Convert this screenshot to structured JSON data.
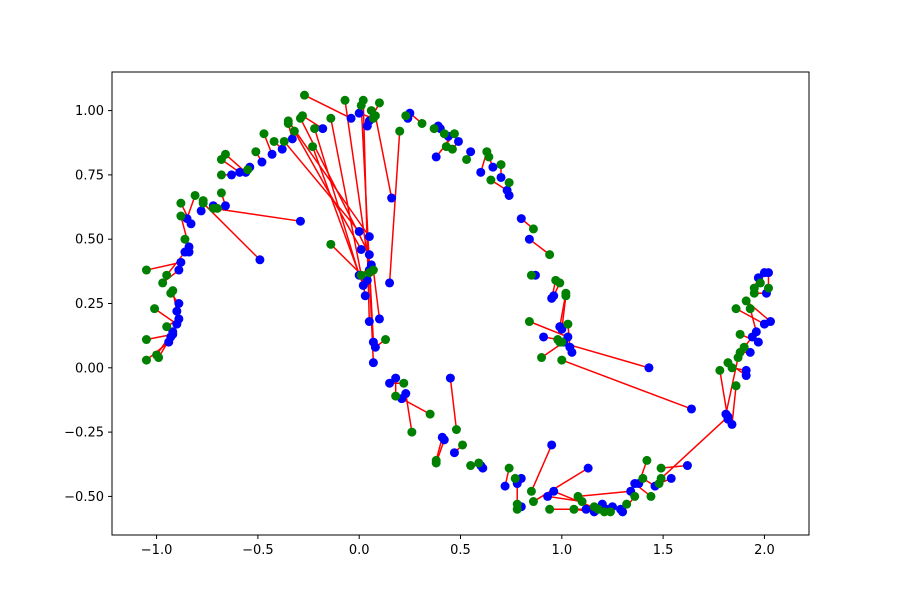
{
  "chart_data": {
    "type": "scatter",
    "title": "",
    "xlabel": "",
    "ylabel": "",
    "xlim": [
      -1.22,
      2.22
    ],
    "ylim": [
      -0.65,
      1.15
    ],
    "grid": false,
    "legend": "none",
    "xticks": [
      -1.0,
      -0.5,
      0.0,
      0.5,
      1.0,
      1.5,
      2.0
    ],
    "xtick_labels": [
      "−1.0",
      "−0.5",
      "0.0",
      "0.5",
      "1.0",
      "1.5",
      "2.0"
    ],
    "yticks": [
      -0.5,
      -0.25,
      0.0,
      0.25,
      0.5,
      0.75,
      1.0
    ],
    "ytick_labels": [
      "−0.50",
      "−0.25",
      "0.00",
      "0.25",
      "0.50",
      "0.75",
      "1.00"
    ],
    "colors": {
      "source": "#0000ff",
      "target": "#008000",
      "link": "#ff0000"
    },
    "pairs": [
      [
        -0.94,
        0.1,
        -1.05,
        0.03
      ],
      [
        -0.92,
        0.13,
        -1.05,
        0.11
      ],
      [
        -0.93,
        0.12,
        -0.99,
        0.04
      ],
      [
        -0.92,
        0.14,
        -1.0,
        0.05
      ],
      [
        -0.89,
        0.19,
        -0.95,
        0.16
      ],
      [
        -0.9,
        0.17,
        -1.01,
        0.23
      ],
      [
        -0.89,
        0.25,
        -0.93,
        0.29
      ],
      [
        -0.9,
        0.22,
        -0.92,
        0.3
      ],
      [
        -0.89,
        0.38,
        -0.97,
        0.33
      ],
      [
        -0.88,
        0.41,
        -1.05,
        0.38
      ],
      [
        -0.86,
        0.45,
        -0.95,
        0.36
      ],
      [
        -0.84,
        0.47,
        -0.88,
        0.59
      ],
      [
        -0.84,
        0.45,
        -0.86,
        0.5
      ],
      [
        -0.83,
        0.56,
        -0.88,
        0.64
      ],
      [
        -0.85,
        0.58,
        -0.81,
        0.67
      ],
      [
        -0.78,
        0.61,
        -0.77,
        0.65
      ],
      [
        -0.72,
        0.63,
        -0.7,
        0.62
      ],
      [
        -0.66,
        0.63,
        -0.68,
        0.68
      ],
      [
        -0.63,
        0.75,
        -0.68,
        0.75
      ],
      [
        -0.59,
        0.76,
        -0.68,
        0.81
      ],
      [
        -0.56,
        0.76,
        -0.66,
        0.83
      ],
      [
        -0.54,
        0.78,
        -0.55,
        0.77
      ],
      [
        -0.48,
        0.8,
        -0.51,
        0.84
      ],
      [
        -0.43,
        0.83,
        -0.47,
        0.91
      ],
      [
        -0.38,
        0.85,
        -0.42,
        0.88
      ],
      [
        -0.33,
        0.89,
        -0.35,
        0.95
      ],
      [
        -0.18,
        0.93,
        -0.28,
        0.98
      ],
      [
        -0.04,
        0.97,
        -0.27,
        1.06
      ],
      [
        -0.49,
        0.42,
        -0.77,
        0.64
      ],
      [
        -0.29,
        0.57,
        -0.72,
        0.62
      ],
      [
        0.0,
        0.53,
        -0.37,
        0.88
      ],
      [
        0.05,
        0.51,
        -0.35,
        0.96
      ],
      [
        0.05,
        0.44,
        -0.29,
        0.97
      ],
      [
        0.01,
        0.46,
        -0.32,
        0.92
      ],
      [
        0.0,
        0.36,
        -0.22,
        0.93
      ],
      [
        0.02,
        0.32,
        -0.23,
        0.86
      ],
      [
        0.03,
        0.28,
        -0.14,
        0.97
      ],
      [
        0.04,
        0.34,
        -0.14,
        0.48
      ],
      [
        0.05,
        0.38,
        -0.07,
        1.04
      ],
      [
        0.06,
        0.4,
        0.01,
        0.36
      ],
      [
        0.05,
        0.18,
        0.02,
        1.04
      ],
      [
        0.07,
        0.1,
        0.01,
        1.02
      ],
      [
        0.08,
        0.08,
        0.13,
        0.11
      ],
      [
        0.1,
        0.19,
        0.07,
        0.38
      ],
      [
        0.07,
        0.02,
        0.05,
        0.37
      ],
      [
        0.04,
        0.94,
        0.1,
        1.03
      ],
      [
        0.05,
        0.96,
        0.06,
        1.0
      ],
      [
        0.0,
        0.99,
        0.07,
        0.97
      ],
      [
        0.15,
        0.33,
        0.2,
        0.92
      ],
      [
        0.16,
        0.66,
        0.08,
        0.98
      ],
      [
        0.24,
        0.97,
        0.23,
        0.98
      ],
      [
        0.25,
        0.99,
        0.31,
        0.95
      ],
      [
        0.39,
        0.94,
        0.37,
        0.93
      ],
      [
        0.4,
        0.93,
        0.42,
        0.91
      ],
      [
        0.44,
        0.9,
        0.43,
        0.86
      ],
      [
        0.38,
        0.82,
        0.47,
        0.91
      ],
      [
        0.49,
        0.88,
        0.46,
        0.85
      ],
      [
        0.55,
        0.84,
        0.53,
        0.81
      ],
      [
        0.6,
        0.76,
        0.63,
        0.84
      ],
      [
        0.66,
        0.78,
        0.64,
        0.82
      ],
      [
        0.7,
        0.74,
        0.7,
        0.79
      ],
      [
        0.73,
        0.69,
        0.65,
        0.73
      ],
      [
        0.74,
        0.67,
        0.74,
        0.72
      ],
      [
        0.8,
        0.58,
        0.86,
        0.54
      ],
      [
        0.84,
        0.5,
        0.94,
        0.44
      ],
      [
        0.87,
        0.36,
        0.85,
        0.36
      ],
      [
        0.95,
        0.27,
        0.97,
        0.34
      ],
      [
        0.96,
        0.28,
        0.99,
        0.33
      ],
      [
        0.99,
        0.16,
        1.02,
        0.29
      ],
      [
        1.0,
        0.15,
        1.02,
        0.28
      ],
      [
        1.03,
        0.12,
        0.84,
        0.18
      ],
      [
        1.01,
        0.1,
        0.9,
        0.04
      ],
      [
        1.04,
        0.08,
        1.03,
        0.17
      ],
      [
        1.05,
        0.06,
        1.0,
        0.1
      ],
      [
        0.91,
        0.12,
        0.98,
        0.11
      ],
      [
        1.43,
        0.0,
        0.99,
        0.1
      ],
      [
        1.64,
        -0.16,
        1.0,
        0.03
      ],
      [
        0.15,
        -0.06,
        0.22,
        -0.06
      ],
      [
        0.18,
        -0.04,
        0.18,
        -0.11
      ],
      [
        0.23,
        -0.1,
        0.26,
        -0.25
      ],
      [
        0.21,
        -0.12,
        0.35,
        -0.18
      ],
      [
        0.41,
        -0.27,
        0.38,
        -0.36
      ],
      [
        0.42,
        -0.28,
        0.38,
        -0.37
      ],
      [
        0.45,
        -0.04,
        0.48,
        -0.24
      ],
      [
        0.47,
        -0.33,
        0.51,
        -0.3
      ],
      [
        0.6,
        -0.38,
        0.55,
        -0.38
      ],
      [
        0.61,
        -0.39,
        0.59,
        -0.37
      ],
      [
        0.8,
        -0.43,
        0.77,
        -0.43
      ],
      [
        0.72,
        -0.46,
        0.74,
        -0.39
      ],
      [
        0.95,
        -0.3,
        0.85,
        -0.48
      ],
      [
        1.13,
        -0.39,
        0.86,
        -0.52
      ],
      [
        0.78,
        -0.45,
        0.78,
        -0.53
      ],
      [
        0.8,
        -0.54,
        0.78,
        -0.55
      ],
      [
        0.93,
        -0.5,
        1.1,
        -0.52
      ],
      [
        0.96,
        -0.48,
        1.21,
        -0.56
      ],
      [
        1.12,
        -0.55,
        0.94,
        -0.55
      ],
      [
        1.16,
        -0.56,
        1.06,
        -0.55
      ],
      [
        1.2,
        -0.53,
        1.18,
        -0.55
      ],
      [
        1.22,
        -0.55,
        1.16,
        -0.54
      ],
      [
        1.25,
        -0.54,
        1.24,
        -0.56
      ],
      [
        1.29,
        -0.55,
        1.32,
        -0.53
      ],
      [
        1.3,
        -0.56,
        1.36,
        -0.5
      ],
      [
        1.34,
        -0.48,
        1.08,
        -0.5
      ],
      [
        1.36,
        -0.45,
        1.44,
        -0.5
      ],
      [
        1.38,
        -0.45,
        1.42,
        -0.36
      ],
      [
        1.46,
        -0.46,
        1.4,
        -0.43
      ],
      [
        1.62,
        -0.38,
        1.49,
        -0.39
      ],
      [
        1.54,
        -0.43,
        1.48,
        -0.45
      ],
      [
        1.82,
        -0.19,
        1.49,
        -0.43
      ],
      [
        1.82,
        -0.2,
        1.78,
        -0.01
      ],
      [
        1.84,
        -0.22,
        1.86,
        -0.07
      ],
      [
        1.81,
        -0.18,
        1.87,
        0.04
      ],
      [
        1.91,
        -0.03,
        1.82,
        0.02
      ],
      [
        1.91,
        -0.01,
        1.84,
        0.0
      ],
      [
        1.93,
        0.06,
        1.88,
        0.06
      ],
      [
        1.94,
        0.12,
        1.9,
        0.08
      ],
      [
        1.97,
        0.1,
        1.88,
        0.13
      ],
      [
        1.96,
        0.14,
        1.93,
        0.23
      ],
      [
        2.03,
        0.18,
        1.91,
        0.26
      ],
      [
        2.0,
        0.17,
        1.86,
        0.23
      ],
      [
        2.01,
        0.29,
        1.95,
        0.29
      ],
      [
        1.97,
        0.35,
        1.95,
        0.31
      ],
      [
        2.0,
        0.37,
        1.98,
        0.33
      ],
      [
        2.02,
        0.37,
        2.02,
        0.31
      ]
    ]
  }
}
